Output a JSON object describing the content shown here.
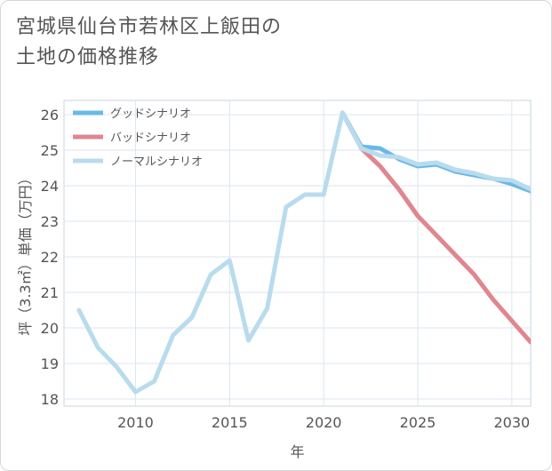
{
  "title_lines": [
    "宮城県仙台市若林区上飯田の",
    "土地の価格推移"
  ],
  "chart_data": {
    "type": "line",
    "title": "宮城県仙台市若林区上飯田の土地の価格推移",
    "xlabel": "年",
    "ylabel": "坪（3.3㎡）単価（万円）",
    "xlim": [
      2006.2,
      2031
    ],
    "ylim": [
      17.8,
      26.4
    ],
    "xticks": [
      2010,
      2015,
      2020,
      2025,
      2030
    ],
    "yticks": [
      18,
      19,
      20,
      21,
      22,
      23,
      24,
      25,
      26
    ],
    "grid": true,
    "legend_position": "top-left",
    "series": [
      {
        "name": "グッドシナリオ",
        "color": "#6bb8e8",
        "x": [
          2021,
          2022,
          2023,
          2024,
          2025,
          2026,
          2027,
          2028,
          2029,
          2030,
          2031
        ],
        "y": [
          26.05,
          25.1,
          25.05,
          24.75,
          24.55,
          24.6,
          24.4,
          24.3,
          24.2,
          24.05,
          23.85
        ]
      },
      {
        "name": "バッドシナリオ",
        "color": "#e0868f",
        "x": [
          2021,
          2022,
          2023,
          2024,
          2025,
          2026,
          2027,
          2028,
          2029,
          2030,
          2031
        ],
        "y": [
          26.05,
          25.05,
          24.55,
          23.9,
          23.15,
          22.6,
          22.05,
          21.5,
          20.8,
          20.2,
          19.6
        ]
      },
      {
        "name": "ノーマルシナリオ",
        "color": "#b8dced",
        "x": [
          2007,
          2008,
          2009,
          2010,
          2011,
          2012,
          2013,
          2014,
          2015,
          2016,
          2017,
          2018,
          2019,
          2020,
          2021,
          2022,
          2023,
          2024,
          2025,
          2026,
          2027,
          2028,
          2029,
          2030,
          2031
        ],
        "y": [
          20.5,
          19.45,
          18.9,
          18.2,
          18.5,
          19.8,
          20.3,
          21.5,
          21.9,
          19.65,
          20.55,
          23.4,
          23.75,
          23.75,
          26.05,
          25.05,
          24.85,
          24.8,
          24.6,
          24.65,
          24.45,
          24.35,
          24.2,
          24.15,
          23.9
        ]
      }
    ]
  }
}
